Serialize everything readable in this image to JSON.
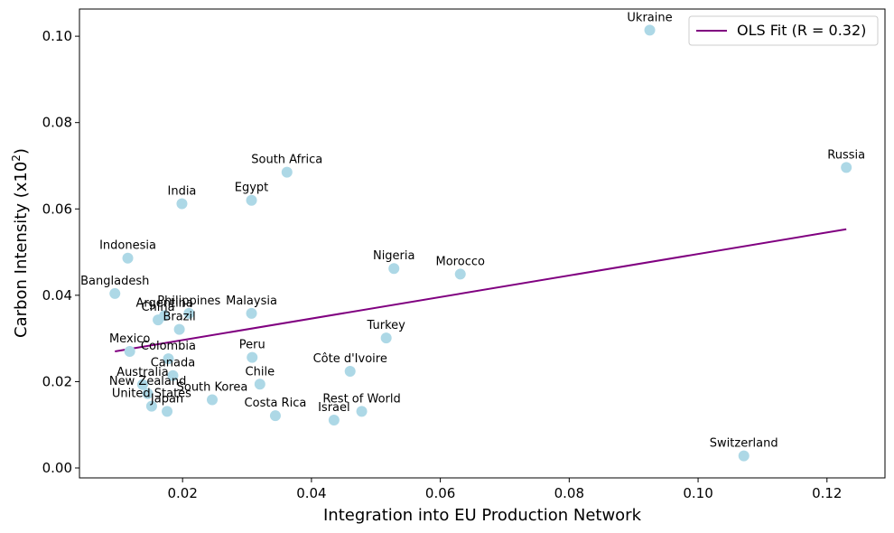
{
  "chart_data": {
    "type": "scatter",
    "xlabel": "Integration into EU Production Network",
    "ylabel": "Carbon Intensity (x10",
    "ylabel_superscript": "2",
    "ylabel_suffix": ")",
    "xlim": [
      0.004,
      0.129
    ],
    "ylim": [
      -0.0023,
      0.1063
    ],
    "x_ticks": [
      0.02,
      0.04,
      0.06,
      0.08,
      0.1,
      0.12
    ],
    "x_tick_labels": [
      "0.02",
      "0.04",
      "0.06",
      "0.08",
      "0.10",
      "0.12"
    ],
    "y_ticks": [
      0.0,
      0.02,
      0.04,
      0.06,
      0.08,
      0.1
    ],
    "y_tick_labels": [
      "0.00",
      "0.02",
      "0.04",
      "0.06",
      "0.08",
      "0.10"
    ],
    "point_color": "#add8e6",
    "line_color": "#800080",
    "fit": {
      "label": "OLS Fit (R = 0.32)",
      "x": [
        0.0095,
        0.123
      ],
      "y": [
        0.027,
        0.0553
      ]
    },
    "legend_position": "top-right",
    "points": [
      {
        "name": "Ukraine",
        "x": 0.0925,
        "y": 0.1014
      },
      {
        "name": "Russia",
        "x": 0.123,
        "y": 0.0696
      },
      {
        "name": "South Africa",
        "x": 0.0362,
        "y": 0.0685
      },
      {
        "name": "India",
        "x": 0.0199,
        "y": 0.0612
      },
      {
        "name": "Egypt",
        "x": 0.0307,
        "y": 0.062
      },
      {
        "name": "Indonesia",
        "x": 0.0115,
        "y": 0.0486
      },
      {
        "name": "Nigeria",
        "x": 0.0528,
        "y": 0.0462
      },
      {
        "name": "Morocco",
        "x": 0.0631,
        "y": 0.0449
      },
      {
        "name": "Bangladesh",
        "x": 0.0095,
        "y": 0.0404
      },
      {
        "name": "Malaysia",
        "x": 0.0307,
        "y": 0.0358
      },
      {
        "name": "Philippines",
        "x": 0.021,
        "y": 0.0358
      },
      {
        "name": "Argentina",
        "x": 0.0172,
        "y": 0.0353
      },
      {
        "name": "China",
        "x": 0.0162,
        "y": 0.0343
      },
      {
        "name": "Brazil",
        "x": 0.0195,
        "y": 0.0321
      },
      {
        "name": "Turkey",
        "x": 0.0516,
        "y": 0.0301
      },
      {
        "name": "Mexico",
        "x": 0.0118,
        "y": 0.027
      },
      {
        "name": "Peru",
        "x": 0.0308,
        "y": 0.0256
      },
      {
        "name": "Colombia",
        "x": 0.0178,
        "y": 0.0253
      },
      {
        "name": "Côte d'Ivoire",
        "x": 0.046,
        "y": 0.0224
      },
      {
        "name": "Canada",
        "x": 0.0185,
        "y": 0.0214
      },
      {
        "name": "Chile",
        "x": 0.032,
        "y": 0.0194
      },
      {
        "name": "Australia",
        "x": 0.0138,
        "y": 0.0193
      },
      {
        "name": "New Zealand",
        "x": 0.0146,
        "y": 0.0172
      },
      {
        "name": "South Korea",
        "x": 0.0246,
        "y": 0.0158
      },
      {
        "name": "United States",
        "x": 0.0152,
        "y": 0.0143
      },
      {
        "name": "Japan",
        "x": 0.0176,
        "y": 0.0131
      },
      {
        "name": "Rest of World",
        "x": 0.0478,
        "y": 0.0131
      },
      {
        "name": "Costa Rica",
        "x": 0.0344,
        "y": 0.0121
      },
      {
        "name": "Israel",
        "x": 0.0435,
        "y": 0.0111
      },
      {
        "name": "Switzerland",
        "x": 0.1071,
        "y": 0.0028
      }
    ]
  }
}
